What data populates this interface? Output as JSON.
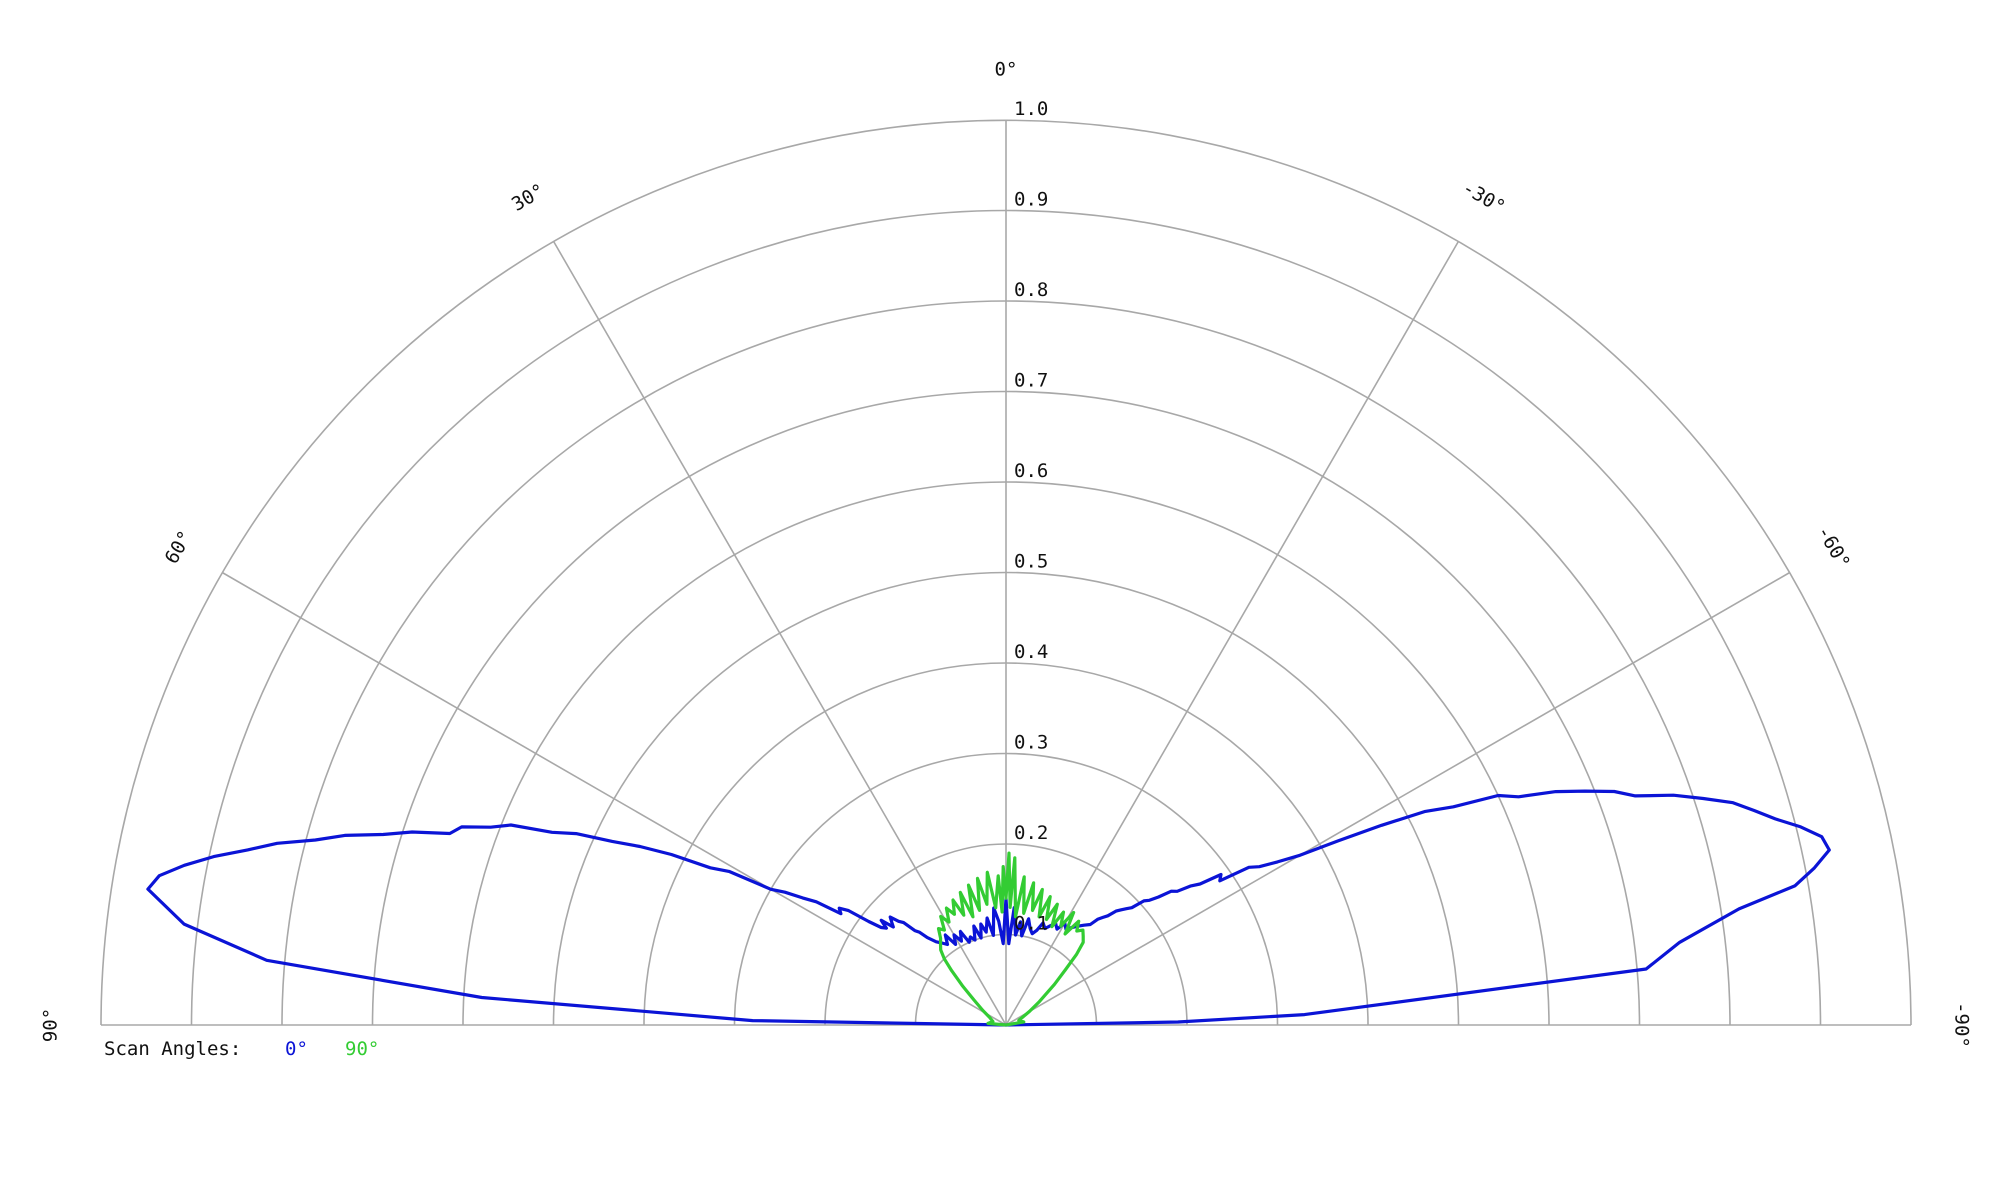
{
  "chart_data": {
    "type": "polar",
    "angle_axis": {
      "ticks": [
        90,
        60,
        30,
        0,
        -30,
        -60,
        -90
      ],
      "labels": [
        "90°",
        "60°",
        "30°",
        "0°",
        "-30°",
        "-60°",
        "-90°"
      ],
      "range": [
        -90,
        90
      ]
    },
    "radial_axis": {
      "range": [
        0,
        1.0
      ],
      "ticks": [
        0.1,
        0.2,
        0.3,
        0.4,
        0.5,
        0.6,
        0.7,
        0.8,
        0.9,
        1.0
      ],
      "labels": [
        "0.1",
        "0.2",
        "0.3",
        "0.4",
        "0.5",
        "0.6",
        "0.7",
        "0.8",
        "0.9",
        "1.0"
      ]
    },
    "grid": true,
    "legend": {
      "title": "Scan Angles:",
      "placement": "bottom-left",
      "entries": [
        "0°",
        "90°"
      ]
    },
    "series": [
      {
        "name": "0°",
        "color": "#0b14d6",
        "points": [
          [
            -90,
            0.0
          ],
          [
            -89,
            0.19
          ],
          [
            -88,
            0.33
          ],
          [
            -85,
            0.71
          ],
          [
            -83,
            0.75
          ],
          [
            -81,
            0.82
          ],
          [
            -80,
            0.885
          ],
          [
            -79,
            0.91
          ],
          [
            -78,
            0.93
          ],
          [
            -77,
            0.925
          ],
          [
            -76,
            0.905
          ],
          [
            -75,
            0.88
          ],
          [
            -74,
            0.86
          ],
          [
            -73,
            0.84
          ],
          [
            -72,
            0.81
          ],
          [
            -71,
            0.78
          ],
          [
            -70,
            0.74
          ],
          [
            -69,
            0.72
          ],
          [
            -68,
            0.69
          ],
          [
            -67,
            0.66
          ],
          [
            -66,
            0.62
          ],
          [
            -65,
            0.6
          ],
          [
            -64,
            0.55
          ],
          [
            -63,
            0.52
          ],
          [
            -62,
            0.47
          ],
          [
            -61,
            0.42
          ],
          [
            -60,
            0.375
          ],
          [
            -59,
            0.35
          ],
          [
            -58,
            0.33
          ],
          [
            -57,
            0.32
          ],
          [
            -56,
            0.285
          ],
          [
            -55,
            0.29
          ],
          [
            -54,
            0.265
          ],
          [
            -53,
            0.255
          ],
          [
            -52,
            0.24
          ],
          [
            -51,
            0.235
          ],
          [
            -50,
            0.22
          ],
          [
            -49,
            0.21
          ],
          [
            -48,
            0.205
          ],
          [
            -47,
            0.19
          ],
          [
            -46,
            0.185
          ],
          [
            -45,
            0.18
          ],
          [
            -44,
            0.175
          ],
          [
            -43,
            0.165
          ],
          [
            -42,
            0.16
          ],
          [
            -41,
            0.155
          ],
          [
            -40,
            0.145
          ],
          [
            -38,
            0.14
          ],
          [
            -36,
            0.135
          ],
          [
            -34,
            0.13
          ],
          [
            -32,
            0.125
          ],
          [
            -30,
            0.13
          ],
          [
            -28,
            0.12
          ],
          [
            -26,
            0.125
          ],
          [
            -24,
            0.12
          ],
          [
            -22,
            0.115
          ],
          [
            -20,
            0.12
          ],
          [
            -18,
            0.11
          ],
          [
            -16,
            0.105
          ],
          [
            -14,
            0.11
          ],
          [
            -12,
            0.12
          ],
          [
            -10,
            0.1
          ],
          [
            -8,
            0.115
          ],
          [
            -6,
            0.1
          ],
          [
            -4,
            0.13
          ],
          [
            -2,
            0.09
          ],
          [
            0,
            0.14
          ],
          [
            2,
            0.09
          ],
          [
            4,
            0.115
          ],
          [
            6,
            0.13
          ],
          [
            8,
            0.1
          ],
          [
            10,
            0.12
          ],
          [
            12,
            0.105
          ],
          [
            14,
            0.115
          ],
          [
            16,
            0.1
          ],
          [
            18,
            0.115
          ],
          [
            20,
            0.1
          ],
          [
            22,
            0.105
          ],
          [
            24,
            0.1
          ],
          [
            26,
            0.115
          ],
          [
            28,
            0.105
          ],
          [
            30,
            0.115
          ],
          [
            32,
            0.105
          ],
          [
            34,
            0.12
          ],
          [
            36,
            0.11
          ],
          [
            38,
            0.115
          ],
          [
            40,
            0.12
          ],
          [
            42,
            0.13
          ],
          [
            43,
            0.14
          ],
          [
            44,
            0.145
          ],
          [
            45,
            0.16
          ],
          [
            46,
            0.165
          ],
          [
            47,
            0.175
          ],
          [
            48,
            0.17
          ],
          [
            49,
            0.165
          ],
          [
            50,
            0.18
          ],
          [
            51,
            0.17
          ],
          [
            52,
            0.175
          ],
          [
            53,
            0.19
          ],
          [
            54,
            0.215
          ],
          [
            55,
            0.225
          ],
          [
            56,
            0.22
          ],
          [
            57,
            0.25
          ],
          [
            58,
            0.265
          ],
          [
            59,
            0.285
          ],
          [
            60,
            0.3
          ],
          [
            61,
            0.35
          ],
          [
            62,
            0.37
          ],
          [
            63,
            0.415
          ],
          [
            64,
            0.45
          ],
          [
            65,
            0.48
          ],
          [
            66,
            0.52
          ],
          [
            67,
            0.545
          ],
          [
            68,
            0.59
          ],
          [
            69,
            0.61
          ],
          [
            70,
            0.64
          ],
          [
            71,
            0.65
          ],
          [
            72,
            0.69
          ],
          [
            73,
            0.72
          ],
          [
            74,
            0.76
          ],
          [
            75,
            0.79
          ],
          [
            76,
            0.83
          ],
          [
            77,
            0.86
          ],
          [
            78,
            0.895
          ],
          [
            79,
            0.925
          ],
          [
            80,
            0.95
          ],
          [
            81,
            0.96
          ],
          [
            83,
            0.915
          ],
          [
            85,
            0.82
          ],
          [
            87,
            0.58
          ],
          [
            89,
            0.28
          ],
          [
            90,
            0.0
          ]
        ]
      },
      {
        "name": "90°",
        "color": "#33cc33",
        "points": [
          [
            -90,
            0.0
          ],
          [
            -80,
            0.02
          ],
          [
            -70,
            0.015
          ],
          [
            -60,
            0.03
          ],
          [
            -55,
            0.045
          ],
          [
            -50,
            0.07
          ],
          [
            -47,
            0.09
          ],
          [
            -45,
            0.11
          ],
          [
            -43,
            0.125
          ],
          [
            -41,
            0.13
          ],
          [
            -39,
            0.135
          ],
          [
            -37,
            0.13
          ],
          [
            -35,
            0.14
          ],
          [
            -33,
            0.12
          ],
          [
            -31,
            0.145
          ],
          [
            -29,
            0.125
          ],
          [
            -27,
            0.14
          ],
          [
            -25,
            0.12
          ],
          [
            -23,
            0.145
          ],
          [
            -21,
            0.125
          ],
          [
            -19,
            0.15
          ],
          [
            -17,
            0.125
          ],
          [
            -15,
            0.155
          ],
          [
            -13,
            0.13
          ],
          [
            -11,
            0.16
          ],
          [
            -9,
            0.125
          ],
          [
            -7,
            0.165
          ],
          [
            -5,
            0.12
          ],
          [
            -3,
            0.185
          ],
          [
            -2,
            0.13
          ],
          [
            -1,
            0.19
          ],
          [
            0,
            0.14
          ],
          [
            1,
            0.175
          ],
          [
            2,
            0.125
          ],
          [
            3,
            0.165
          ],
          [
            5,
            0.13
          ],
          [
            7,
            0.17
          ],
          [
            9,
            0.135
          ],
          [
            11,
            0.165
          ],
          [
            13,
            0.13
          ],
          [
            15,
            0.16
          ],
          [
            17,
            0.125
          ],
          [
            19,
            0.155
          ],
          [
            21,
            0.13
          ],
          [
            23,
            0.15
          ],
          [
            25,
            0.135
          ],
          [
            27,
            0.145
          ],
          [
            29,
            0.13
          ],
          [
            31,
            0.14
          ],
          [
            33,
            0.125
          ],
          [
            35,
            0.13
          ],
          [
            37,
            0.12
          ],
          [
            39,
            0.115
          ],
          [
            41,
            0.11
          ],
          [
            43,
            0.1
          ],
          [
            45,
            0.085
          ],
          [
            48,
            0.065
          ],
          [
            52,
            0.045
          ],
          [
            58,
            0.03
          ],
          [
            65,
            0.02
          ],
          [
            75,
            0.015
          ],
          [
            85,
            0.02
          ],
          [
            90,
            0.0
          ]
        ]
      }
    ]
  }
}
